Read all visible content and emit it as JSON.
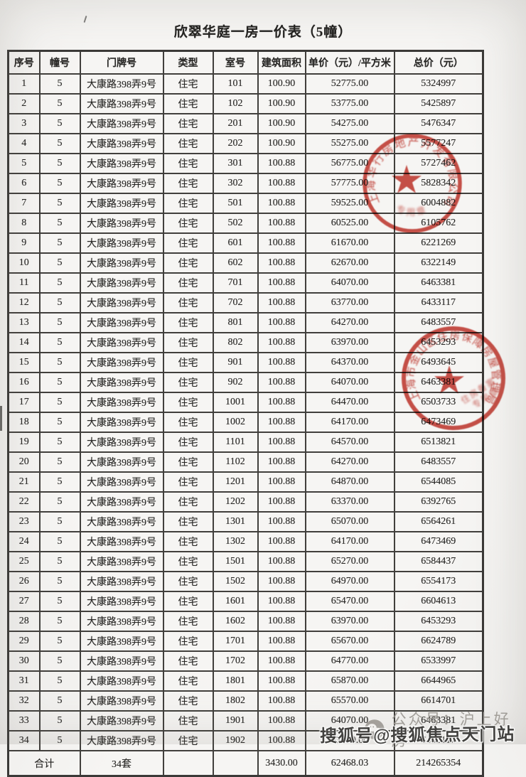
{
  "page": {
    "title": "欣翠华庭一房一价表（5幢）"
  },
  "table": {
    "headers": [
      "序号",
      "幢号",
      "门牌号",
      "类型",
      "室号",
      "建筑面积",
      "单价（元）/平方米",
      "总价（元）"
    ],
    "rows": [
      [
        "1",
        "5",
        "大康路398弄9号",
        "住宅",
        "101",
        "100.90",
        "52775.00",
        "5324997"
      ],
      [
        "2",
        "5",
        "大康路398弄9号",
        "住宅",
        "102",
        "100.90",
        "53775.00",
        "5425897"
      ],
      [
        "3",
        "5",
        "大康路398弄9号",
        "住宅",
        "201",
        "100.90",
        "54275.00",
        "5476347"
      ],
      [
        "4",
        "5",
        "大康路398弄9号",
        "住宅",
        "202",
        "100.90",
        "55275.00",
        "5577247"
      ],
      [
        "5",
        "5",
        "大康路398弄9号",
        "住宅",
        "301",
        "100.88",
        "56775.00",
        "5727462"
      ],
      [
        "6",
        "5",
        "大康路398弄9号",
        "住宅",
        "302",
        "100.88",
        "57775.00",
        "5828342"
      ],
      [
        "7",
        "5",
        "大康路398弄9号",
        "住宅",
        "501",
        "100.88",
        "59525.00",
        "6004882"
      ],
      [
        "8",
        "5",
        "大康路398弄9号",
        "住宅",
        "502",
        "100.88",
        "60525.00",
        "6105762"
      ],
      [
        "9",
        "5",
        "大康路398弄9号",
        "住宅",
        "601",
        "100.88",
        "61670.00",
        "6221269"
      ],
      [
        "10",
        "5",
        "大康路398弄9号",
        "住宅",
        "602",
        "100.88",
        "62670.00",
        "6322149"
      ],
      [
        "11",
        "5",
        "大康路398弄9号",
        "住宅",
        "701",
        "100.88",
        "64070.00",
        "6463381"
      ],
      [
        "12",
        "5",
        "大康路398弄9号",
        "住宅",
        "702",
        "100.88",
        "63770.00",
        "6433117"
      ],
      [
        "13",
        "5",
        "大康路398弄9号",
        "住宅",
        "801",
        "100.88",
        "64270.00",
        "6483557"
      ],
      [
        "14",
        "5",
        "大康路398弄9号",
        "住宅",
        "802",
        "100.88",
        "63970.00",
        "6453293"
      ],
      [
        "15",
        "5",
        "大康路398弄9号",
        "住宅",
        "901",
        "100.88",
        "64370.00",
        "6493645"
      ],
      [
        "16",
        "5",
        "大康路398弄9号",
        "住宅",
        "902",
        "100.88",
        "64070.00",
        "6463381"
      ],
      [
        "17",
        "5",
        "大康路398弄9号",
        "住宅",
        "1001",
        "100.88",
        "64470.00",
        "6503733"
      ],
      [
        "18",
        "5",
        "大康路398弄9号",
        "住宅",
        "1002",
        "100.88",
        "64170.00",
        "6473469"
      ],
      [
        "19",
        "5",
        "大康路398弄9号",
        "住宅",
        "1101",
        "100.88",
        "64570.00",
        "6513821"
      ],
      [
        "20",
        "5",
        "大康路398弄9号",
        "住宅",
        "1102",
        "100.88",
        "64270.00",
        "6483557"
      ],
      [
        "21",
        "5",
        "大康路398弄9号",
        "住宅",
        "1201",
        "100.88",
        "64870.00",
        "6544085"
      ],
      [
        "22",
        "5",
        "大康路398弄9号",
        "住宅",
        "1202",
        "100.88",
        "63370.00",
        "6392765"
      ],
      [
        "23",
        "5",
        "大康路398弄9号",
        "住宅",
        "1301",
        "100.88",
        "65070.00",
        "6564261"
      ],
      [
        "24",
        "5",
        "大康路398弄9号",
        "住宅",
        "1302",
        "100.88",
        "64170.00",
        "6473469"
      ],
      [
        "25",
        "5",
        "大康路398弄9号",
        "住宅",
        "1501",
        "100.88",
        "65270.00",
        "6584437"
      ],
      [
        "26",
        "5",
        "大康路398弄9号",
        "住宅",
        "1502",
        "100.88",
        "64970.00",
        "6554173"
      ],
      [
        "27",
        "5",
        "大康路398弄9号",
        "住宅",
        "1601",
        "100.88",
        "65470.00",
        "6604613"
      ],
      [
        "28",
        "5",
        "大康路398弄9号",
        "住宅",
        "1602",
        "100.88",
        "63970.00",
        "6453293"
      ],
      [
        "29",
        "5",
        "大康路398弄9号",
        "住宅",
        "1701",
        "100.88",
        "65670.00",
        "6624789"
      ],
      [
        "30",
        "5",
        "大康路398弄9号",
        "住宅",
        "1702",
        "100.88",
        "64770.00",
        "6533997"
      ],
      [
        "31",
        "5",
        "大康路398弄9号",
        "住宅",
        "1801",
        "100.88",
        "65870.00",
        "6644965"
      ],
      [
        "32",
        "5",
        "大康路398弄9号",
        "住宅",
        "1802",
        "100.88",
        "65570.00",
        "6614701"
      ],
      [
        "33",
        "5",
        "大康路398弄9号",
        "住宅",
        "1901",
        "100.88",
        "64070.00",
        "6463381"
      ],
      [
        "34",
        "5",
        "大康路398弄9号",
        "住宅",
        "1902",
        "100.88",
        "63770.00",
        "6433117"
      ]
    ],
    "total_row": {
      "label": "合计",
      "units": "34套",
      "area": "3430.00",
      "unit_price": "62468.03",
      "total_price": "214265354"
    }
  },
  "stamps": [
    {
      "name": "developer-seal",
      "arc_text": "上海华行房地产开发有限公司",
      "bottom_text": "专用章",
      "color": "#c43a31"
    },
    {
      "name": "authority-seal",
      "arc_text": "上海市金山区住房保障房屋管理局",
      "inner_lines": [
        "住房备案",
        "专用章"
      ],
      "color": "#c43a31"
    }
  ],
  "watermarks": {
    "wechat_icon": "wechat-icon",
    "wechat_label": "公众号：沪上好房",
    "souhu_label": "搜狐号@搜狐焦点天门站"
  },
  "colors": {
    "paper": "#f5f4f2",
    "ink": "#292826",
    "table_border": "#413f3c",
    "stamp_red": "#c43a31",
    "watermark_gray": "#97948e",
    "watermark_dark": "#434240"
  }
}
